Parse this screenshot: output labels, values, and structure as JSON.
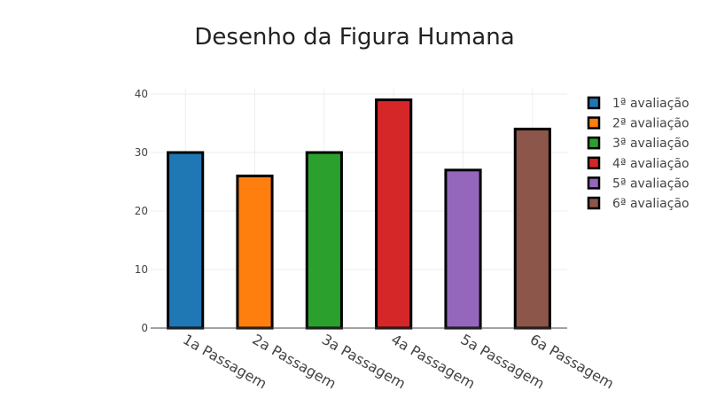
{
  "chart_data": {
    "type": "bar",
    "title": "Desenho da Figura Humana",
    "xlabel": "",
    "ylabel": "",
    "categories": [
      "1a Passagem",
      "2a Passagem",
      "3a Passagem",
      "4a Passagem",
      "5a Passagem",
      "6a Passagem"
    ],
    "series": [
      {
        "name": "1ª avaliação",
        "color": "#1f77b4",
        "values": [
          30,
          null,
          null,
          null,
          null,
          null
        ]
      },
      {
        "name": "2ª avaliação",
        "color": "#ff7f0e",
        "values": [
          null,
          26,
          null,
          null,
          null,
          null
        ]
      },
      {
        "name": "3ª avaliação",
        "color": "#2ca02c",
        "values": [
          null,
          null,
          30,
          null,
          null,
          null
        ]
      },
      {
        "name": "4ª avaliação",
        "color": "#d62728",
        "values": [
          null,
          null,
          null,
          39,
          null,
          null
        ]
      },
      {
        "name": "5ª avaliação",
        "color": "#9467bd",
        "values": [
          null,
          null,
          null,
          null,
          27,
          null
        ]
      },
      {
        "name": "6ª avaliação",
        "color": "#8c564b",
        "values": [
          null,
          null,
          null,
          null,
          null,
          34
        ]
      }
    ],
    "ylim": [
      0,
      40
    ],
    "yticks": [
      0,
      10,
      20,
      30,
      40
    ],
    "grid": true,
    "legend_position": "right",
    "bar_outline_color": "#000000"
  }
}
